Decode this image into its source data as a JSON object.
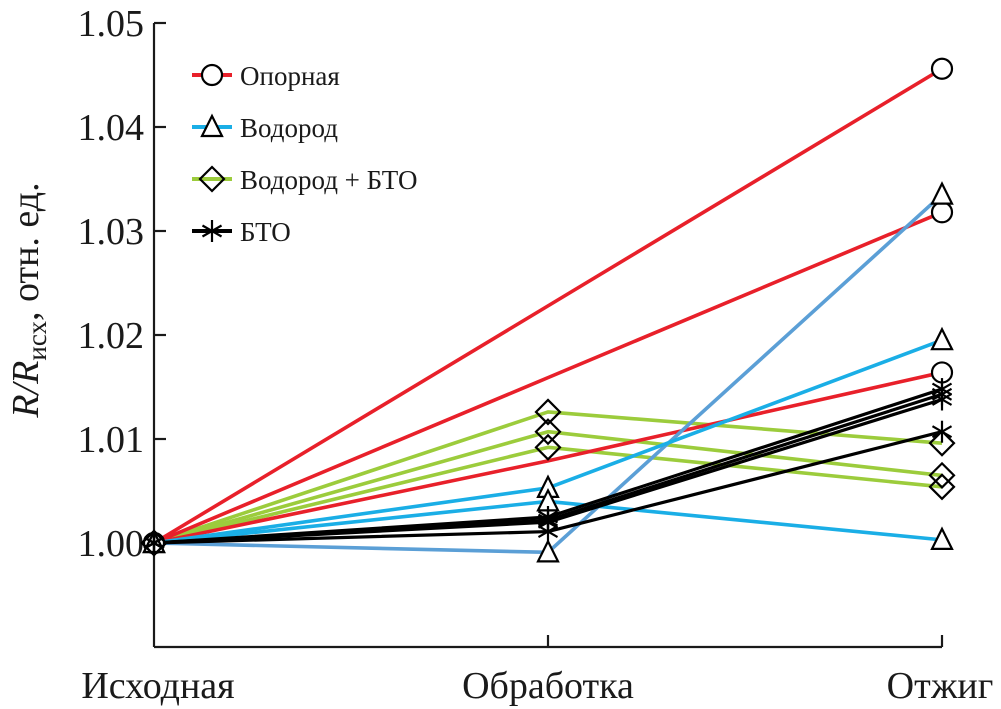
{
  "chart_data": {
    "type": "line",
    "title": "",
    "xlabel": "",
    "ylabel_main": "R/R",
    "ylabel_sub": "исх",
    "ylabel_rest": ", отн. ед.",
    "categories": [
      "Исходная",
      "Обработка",
      "Отжиг"
    ],
    "ylim": [
      0.99,
      1.05
    ],
    "yticks": [
      {
        "value": 1.0,
        "label": "1.00"
      },
      {
        "value": 1.01,
        "label": "1.01"
      },
      {
        "value": 1.02,
        "label": "1.02"
      },
      {
        "value": 1.03,
        "label": "1.03"
      },
      {
        "value": 1.04,
        "label": "1.04"
      },
      {
        "value": 1.05,
        "label": "1.05"
      }
    ],
    "grid": false,
    "legend_position": "top-left",
    "groups": [
      {
        "name": "Опорная",
        "marker": "circle",
        "color": "#e8202a"
      },
      {
        "name": "Водород",
        "marker": "triangle",
        "color": "#1aaee6"
      },
      {
        "name": "Водород + БТО",
        "marker": "diamond",
        "color": "#9ccc3c"
      },
      {
        "name": "БТО",
        "marker": "star",
        "color": "#000000"
      }
    ],
    "series": [
      {
        "group": "Опорная",
        "values": [
          1.0,
          1.0228,
          1.0456
        ],
        "markers": [
          true,
          false,
          true
        ],
        "color": "#e8202a"
      },
      {
        "group": "Опорная",
        "values": [
          1.0,
          1.0159,
          1.0318
        ],
        "markers": [
          true,
          false,
          true
        ],
        "color": "#e8202a"
      },
      {
        "group": "Опорная",
        "values": [
          1.0,
          1.0079,
          1.0164
        ],
        "markers": [
          true,
          false,
          true
        ],
        "color": "#e8202a"
      },
      {
        "group": "Водород",
        "values": [
          1.0,
          0.9991,
          1.0335
        ],
        "markers": [
          true,
          true,
          true
        ],
        "color": "#5b9fd6"
      },
      {
        "group": "Водород",
        "values": [
          1.0,
          1.0053,
          1.0195
        ],
        "markers": [
          true,
          true,
          true
        ],
        "color": "#1aaee6"
      },
      {
        "group": "Водород",
        "values": [
          1.0,
          1.004,
          1.0003
        ],
        "markers": [
          true,
          true,
          true
        ],
        "color": "#1aaee6"
      },
      {
        "group": "Водород + БТО",
        "values": [
          1.0,
          1.0126,
          1.0096
        ],
        "markers": [
          true,
          true,
          true
        ],
        "color": "#9ccc3c"
      },
      {
        "group": "Водород + БТО",
        "values": [
          1.0,
          1.0107,
          1.0065
        ],
        "markers": [
          true,
          true,
          true
        ],
        "color": "#9ccc3c"
      },
      {
        "group": "Водород + БТО",
        "values": [
          1.0,
          1.0092,
          1.0054
        ],
        "markers": [
          true,
          true,
          true
        ],
        "color": "#9ccc3c"
      },
      {
        "group": "БТО",
        "values": [
          1.0,
          1.0025,
          1.0148
        ],
        "markers": [
          true,
          true,
          true
        ],
        "color": "#000000"
      },
      {
        "group": "БТО",
        "values": [
          1.0,
          1.0022,
          1.0143
        ],
        "markers": [
          true,
          true,
          true
        ],
        "color": "#000000"
      },
      {
        "group": "БТО",
        "values": [
          1.0,
          1.002,
          1.0138
        ],
        "markers": [
          true,
          true,
          true
        ],
        "color": "#000000"
      },
      {
        "group": "БТО",
        "values": [
          1.0,
          1.0011,
          1.0107
        ],
        "markers": [
          true,
          true,
          true
        ],
        "color": "#000000"
      }
    ]
  }
}
